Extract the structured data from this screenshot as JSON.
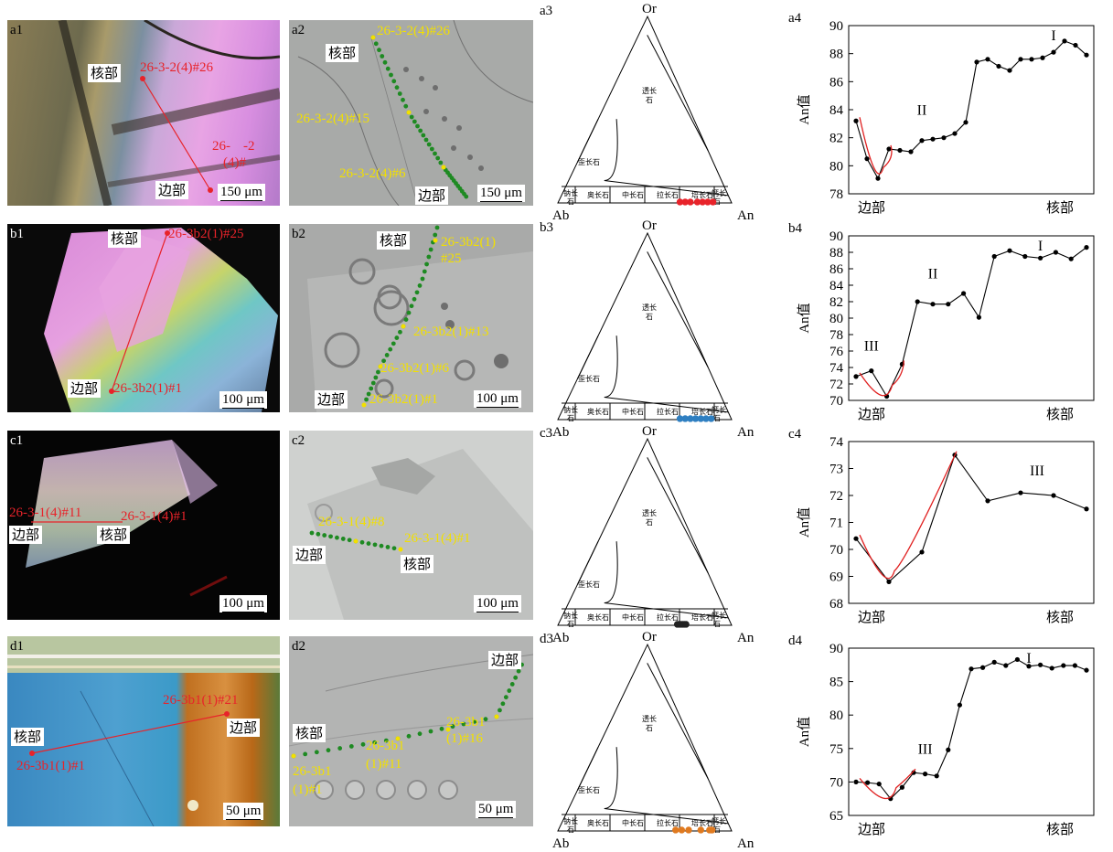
{
  "rows": [
    {
      "id": "a",
      "photo": {
        "label": "a1",
        "core": "核部",
        "rim": "边部",
        "spot_top": "26-3-2(4)#26",
        "spot_mid1": "26-",
        "spot_mid2": "-2",
        "spot_mid3": "(4)#",
        "scale": "150 μm"
      },
      "bse": {
        "label": "a2",
        "core": "核部",
        "rim": "边部",
        "spots": [
          "26-3-2(4)#26",
          "26-3-2(4)#15",
          "26-3-2(4)#6"
        ],
        "scale": "150 μm"
      },
      "tri_label": "a3",
      "plot_label": "a4"
    },
    {
      "id": "b",
      "photo": {
        "label": "b1",
        "core": "核部",
        "rim": "边部",
        "spot_top": "26-3b2(1)#25",
        "spot_bot": "26-3b2(1)#1",
        "scale": "100 μm"
      },
      "bse": {
        "label": "b2",
        "core": "核部",
        "rim": "边部",
        "spots": [
          "26-3b2(1)",
          "#25",
          "26-3b2(1)#13",
          "26-3b2(1)#6",
          "26-3b2(1)#1"
        ],
        "scale": "100 μm"
      },
      "tri_label": "b3",
      "plot_label": "b4"
    },
    {
      "id": "c",
      "photo": {
        "label": "c1",
        "core": "核部",
        "rim": "边部",
        "spot_left": "26-3-1(4)#11",
        "spot_right": "26-3-1(4)#1",
        "scale": "100 μm"
      },
      "bse": {
        "label": "c2",
        "core": "核部",
        "rim": "边部",
        "spots": [
          "26-3-1(4)#8",
          "26-3-1(4)#1"
        ],
        "scale": "100 μm"
      },
      "tri_label": "c3",
      "plot_label": "c4"
    },
    {
      "id": "d",
      "photo": {
        "label": "d1",
        "core": "核部",
        "rim": "边部",
        "spot_top": "26-3b1(1)#21",
        "spot_bot": "26-3b1(1)#1",
        "scale": "50 μm"
      },
      "bse": {
        "label": "d2",
        "core": "核部",
        "rim": "边部",
        "spots": [
          "26-3b1",
          "(1)#1",
          "26-3b1",
          "(1)#11",
          "26-3b1",
          "(1)#16"
        ],
        "scale": "50 μm"
      },
      "tri_label": "d3",
      "plot_label": "d4"
    }
  ],
  "ternary": {
    "apex_top": "Or",
    "apex_left": "Ab",
    "apex_right": "An",
    "fields": [
      "透长石",
      "歪长石",
      "钠长石",
      "奥长石",
      "中长石",
      "拉长石",
      "培长石",
      "钙长石"
    ],
    "field_label_tou": [
      "透长",
      "石"
    ],
    "field_label_na": [
      "钠长",
      "石"
    ],
    "field_label_gai": [
      "钙长",
      "石"
    ],
    "point_colors": [
      "#e8232a",
      "#2f7fc1",
      "#222222",
      "#e07a20"
    ]
  },
  "chart_data": [
    {
      "type": "line",
      "panel": "a4",
      "ylabel": "An值",
      "x_start_label": "边部",
      "x_end_label": "核部",
      "ylim": [
        78,
        90
      ],
      "yticks": [
        78,
        80,
        82,
        84,
        86,
        88,
        90
      ],
      "values": [
        83.2,
        80.5,
        79.1,
        81.2,
        81.1,
        81.0,
        81.8,
        81.9,
        82.0,
        82.3,
        83.1,
        87.4,
        87.6,
        87.1,
        86.8,
        87.6,
        87.6,
        87.7,
        88.1,
        88.9,
        88.6,
        87.9
      ],
      "annotations": [
        {
          "text": "I",
          "at": 18
        },
        {
          "text": "II",
          "at": 6
        }
      ],
      "fit_curve": {
        "from": 0,
        "to": 3
      }
    },
    {
      "type": "line",
      "panel": "b4",
      "ylabel": "An值",
      "x_start_label": "边部",
      "x_end_label": "核部",
      "ylim": [
        70,
        90
      ],
      "yticks": [
        70,
        72,
        74,
        76,
        78,
        80,
        82,
        84,
        86,
        88,
        90
      ],
      "values": [
        72.9,
        73.6,
        70.5,
        74.4,
        82.0,
        81.7,
        81.7,
        83.0,
        80.1,
        87.5,
        88.2,
        87.5,
        87.3,
        88.0,
        87.2,
        88.6
      ],
      "annotations": [
        {
          "text": "I",
          "at": 12
        },
        {
          "text": "II",
          "at": 5
        },
        {
          "text": "III",
          "at": 1
        }
      ],
      "fit_curve": {
        "from": 0,
        "to": 3
      }
    },
    {
      "type": "line",
      "panel": "c4",
      "ylabel": "An值",
      "x_start_label": "边部",
      "x_end_label": "核部",
      "ylim": [
        68,
        74
      ],
      "yticks": [
        68,
        69,
        70,
        71,
        72,
        73,
        74
      ],
      "values": [
        70.4,
        68.8,
        69.9,
        73.5,
        71.8,
        72.1,
        72.0,
        71.5
      ],
      "annotations": [
        {
          "text": "III",
          "at": 5.5
        }
      ],
      "fit_curve": {
        "from": 0,
        "to": 3
      }
    },
    {
      "type": "line",
      "panel": "d4",
      "ylabel": "An值",
      "x_start_label": "边部",
      "x_end_label": "核部",
      "ylim": [
        65,
        90
      ],
      "yticks": [
        65,
        70,
        75,
        80,
        85,
        90
      ],
      "values": [
        70.0,
        69.9,
        69.7,
        67.5,
        69.2,
        71.4,
        71.2,
        70.9,
        74.8,
        81.5,
        86.9,
        87.1,
        87.9,
        87.4,
        88.3,
        87.3,
        87.5,
        87.0,
        87.4,
        87.4,
        86.7
      ],
      "annotations": [
        {
          "text": "I",
          "at": 15
        },
        {
          "text": "III",
          "at": 6
        }
      ],
      "fit_curve": {
        "from": 0,
        "to": 5
      }
    }
  ]
}
